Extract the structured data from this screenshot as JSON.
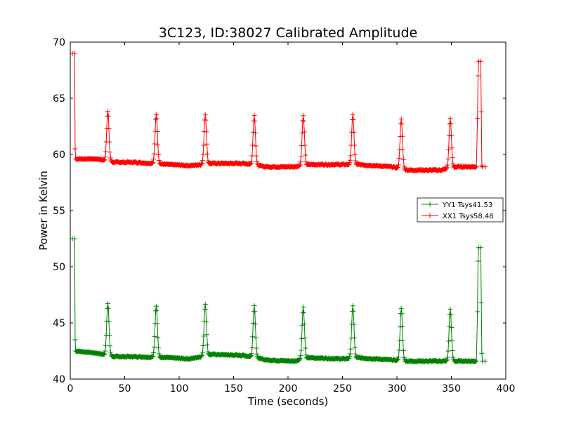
{
  "chart_data": {
    "type": "line",
    "title": "3C123, ID:38027 Calibrated Amplitude",
    "xlabel": "Time (seconds)",
    "ylabel": "Power in Kelvin",
    "xlim": [
      0,
      400
    ],
    "ylim": [
      40,
      70
    ],
    "xticks": [
      0,
      50,
      100,
      150,
      200,
      250,
      300,
      350,
      400
    ],
    "yticks": [
      40,
      45,
      50,
      55,
      60,
      65,
      70
    ],
    "grid": false,
    "legend_position": "right",
    "marker": "+",
    "series": [
      {
        "name": "YY1 Tsys41.53",
        "color": "#008000",
        "start": [
          [
            2,
            52.5
          ],
          [
            4,
            52.5
          ],
          [
            4.5,
            43.5
          ]
        ],
        "baseline": [
          [
            5,
            42.5
          ],
          [
            25,
            42.3
          ],
          [
            40,
            42.0
          ],
          [
            60,
            42.0
          ],
          [
            90,
            41.9
          ],
          [
            110,
            41.8
          ],
          [
            130,
            42.2
          ],
          [
            160,
            42.1
          ],
          [
            180,
            41.7
          ],
          [
            205,
            41.6
          ],
          [
            220,
            41.9
          ],
          [
            250,
            41.8
          ],
          [
            265,
            41.9
          ],
          [
            295,
            41.7
          ],
          [
            310,
            41.6
          ],
          [
            340,
            41.6
          ],
          [
            355,
            41.6
          ],
          [
            373,
            41.6
          ]
        ],
        "peak_height": 4.6,
        "end": [
          [
            374,
            46
          ],
          [
            374.5,
            50.5
          ],
          [
            375,
            51.7
          ],
          [
            377,
            51.7
          ],
          [
            377.5,
            46.8
          ],
          [
            378,
            42.3
          ],
          [
            378.5,
            41.6
          ],
          [
            381,
            41.6
          ]
        ]
      },
      {
        "name": "XX1 Tsys58.48",
        "color": "#ff0000",
        "start": [
          [
            2,
            69.0
          ],
          [
            4,
            69.0
          ],
          [
            4.5,
            60.5
          ]
        ],
        "baseline": [
          [
            5,
            59.6
          ],
          [
            25,
            59.6
          ],
          [
            40,
            59.3
          ],
          [
            60,
            59.3
          ],
          [
            90,
            59.1
          ],
          [
            110,
            59.0
          ],
          [
            130,
            59.2
          ],
          [
            160,
            59.2
          ],
          [
            180,
            58.9
          ],
          [
            205,
            58.9
          ],
          [
            220,
            59.1
          ],
          [
            250,
            59.1
          ],
          [
            265,
            59.1
          ],
          [
            295,
            58.9
          ],
          [
            310,
            58.6
          ],
          [
            340,
            58.6
          ],
          [
            355,
            58.9
          ],
          [
            373,
            58.9
          ]
        ],
        "peak_height": 4.4,
        "end": [
          [
            374,
            63.2
          ],
          [
            374.5,
            67.0
          ],
          [
            375,
            68.3
          ],
          [
            377,
            68.3
          ],
          [
            377.5,
            63.8
          ],
          [
            378,
            59.0
          ],
          [
            378.5,
            58.9
          ],
          [
            381,
            58.9
          ]
        ]
      }
    ],
    "peak_times": [
      34.5,
      79,
      124,
      169,
      214,
      259.5,
      304,
      349
    ]
  }
}
